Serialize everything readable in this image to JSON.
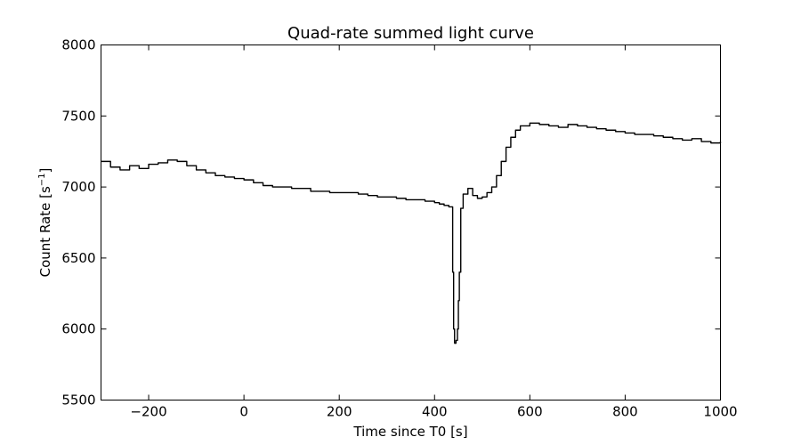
{
  "chart_data": {
    "type": "line",
    "title": "Quad-rate summed light curve",
    "xlabel": "Time since T0 [s]",
    "ylabel": "Count Rate [s",
    "ylabel_sup": "−1",
    "ylabel_close": "]",
    "xlim": [
      -300,
      1000
    ],
    "ylim": [
      5500,
      8000
    ],
    "xticks": [
      -200,
      0,
      200,
      400,
      600,
      800,
      1000
    ],
    "xtick_labels": [
      "−200",
      "0",
      "200",
      "400",
      "600",
      "800",
      "1000"
    ],
    "yticks": [
      5500,
      6000,
      6500,
      7000,
      7500,
      8000
    ],
    "ytick_labels": [
      "5500",
      "6000",
      "6500",
      "7000",
      "7500",
      "8000"
    ],
    "grid": false,
    "line_color": "#000000",
    "series": [
      {
        "x": [
          -300,
          -280,
          -260,
          -240,
          -220,
          -200,
          -180,
          -160,
          -140,
          -120,
          -100,
          -80,
          -60,
          -40,
          -20,
          0,
          20,
          40,
          60,
          80,
          100,
          120,
          140,
          160,
          180,
          200,
          220,
          240,
          260,
          280,
          300,
          320,
          340,
          360,
          380,
          400,
          410,
          420,
          430,
          435,
          438,
          440,
          442,
          445,
          448,
          450,
          452,
          455,
          460,
          470,
          480,
          490,
          500,
          510,
          520,
          530,
          540,
          550,
          560,
          570,
          580,
          600,
          620,
          640,
          660,
          680,
          700,
          720,
          740,
          760,
          780,
          800,
          820,
          840,
          860,
          880,
          900,
          920,
          940,
          960,
          980,
          1000
        ],
        "y": [
          7180,
          7140,
          7120,
          7150,
          7130,
          7160,
          7170,
          7190,
          7180,
          7150,
          7120,
          7100,
          7080,
          7070,
          7060,
          7050,
          7030,
          7010,
          7000,
          7000,
          6990,
          6990,
          6970,
          6970,
          6960,
          6960,
          6960,
          6950,
          6940,
          6930,
          6930,
          6920,
          6910,
          6910,
          6900,
          6890,
          6880,
          6870,
          6860,
          6860,
          6400,
          6000,
          5900,
          5920,
          6000,
          6200,
          6400,
          6850,
          6950,
          6990,
          6940,
          6920,
          6930,
          6960,
          7000,
          7080,
          7180,
          7280,
          7350,
          7400,
          7430,
          7450,
          7440,
          7430,
          7420,
          7440,
          7430,
          7420,
          7410,
          7400,
          7390,
          7380,
          7370,
          7370,
          7360,
          7350,
          7340,
          7330,
          7340,
          7320,
          7310,
          7320
        ]
      }
    ]
  }
}
